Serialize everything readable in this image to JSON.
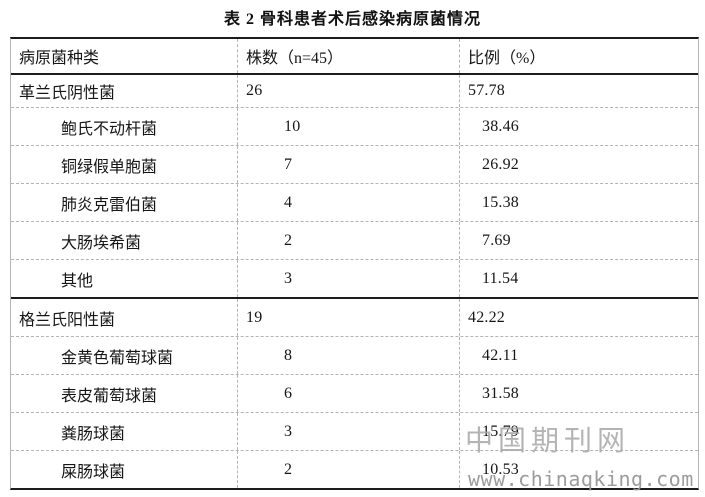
{
  "title": "表 2 骨科患者术后感染病原菌情况",
  "table": {
    "headers": [
      "病原菌种类",
      "株数（n=45）",
      "比例（%）"
    ],
    "rows": [
      {
        "name": "革兰氏阴性菌",
        "count": "26",
        "percent": "57.78",
        "group": true,
        "major": false
      },
      {
        "name": "鲍氏不动杆菌",
        "count": "10",
        "percent": "38.46",
        "group": false,
        "major": false
      },
      {
        "name": "铜绿假单胞菌",
        "count": "7",
        "percent": "26.92",
        "group": false,
        "major": false
      },
      {
        "name": "肺炎克雷伯菌",
        "count": "4",
        "percent": "15.38",
        "group": false,
        "major": false
      },
      {
        "name": "大肠埃希菌",
        "count": "2",
        "percent": "7.69",
        "group": false,
        "major": false
      },
      {
        "name": "其他",
        "count": "3",
        "percent": "11.54",
        "group": false,
        "major": false
      },
      {
        "name": "格兰氏阳性菌",
        "count": "19",
        "percent": "42.22",
        "group": true,
        "major": true
      },
      {
        "name": "金黄色葡萄球菌",
        "count": "8",
        "percent": "42.11",
        "group": false,
        "major": false
      },
      {
        "name": "表皮葡萄球菌",
        "count": "6",
        "percent": "31.58",
        "group": false,
        "major": false
      },
      {
        "name": "粪肠球菌",
        "count": "3",
        "percent": "15.79",
        "group": false,
        "major": false
      },
      {
        "name": "屎肠球菌",
        "count": "2",
        "percent": "10.53",
        "group": false,
        "major": false
      }
    ]
  },
  "watermark": {
    "site_name": "中国期刊网",
    "site_url": "www.chinaqking.com"
  },
  "chart_data": {
    "type": "table",
    "title": "表 2 骨科患者术后感染病原菌情况",
    "columns": [
      "病原菌种类",
      "株数（n=45）",
      "比例（%）"
    ],
    "rows": [
      [
        "革兰氏阴性菌",
        26,
        57.78
      ],
      [
        "鲍氏不动杆菌",
        10,
        38.46
      ],
      [
        "铜绿假单胞菌",
        7,
        26.92
      ],
      [
        "肺炎克雷伯菌",
        4,
        15.38
      ],
      [
        "大肠埃希菌",
        2,
        7.69
      ],
      [
        "其他",
        3,
        11.54
      ],
      [
        "格兰氏阳性菌",
        19,
        42.22
      ],
      [
        "金黄色葡萄球菌",
        8,
        42.11
      ],
      [
        "表皮葡萄球菌",
        6,
        31.58
      ],
      [
        "粪肠球菌",
        3,
        15.79
      ],
      [
        "屎肠球菌",
        2,
        10.53
      ]
    ]
  }
}
